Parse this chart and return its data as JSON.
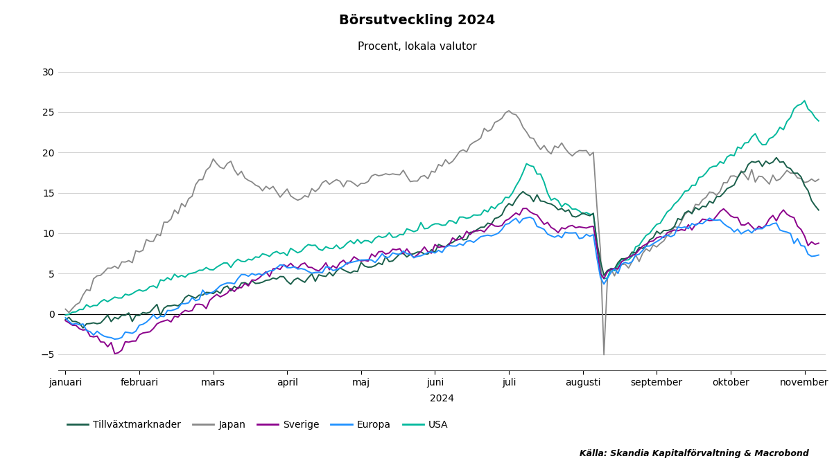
{
  "title": "Börsutveckling 2024",
  "subtitle": "Procent, lokala valutor",
  "xlabel": "2024",
  "source": "Källa: Skandia Kapitalförvaltning & Macrobond",
  "ylim": [
    -7,
    32
  ],
  "yticks": [
    -5,
    0,
    5,
    10,
    15,
    20,
    25,
    30
  ],
  "month_labels": [
    "januari",
    "februari",
    "mars",
    "april",
    "maj",
    "juni",
    "juli",
    "augusti",
    "september",
    "oktober",
    "november"
  ],
  "colors": {
    "Tillvaxtmarknader": "#1a5e4a",
    "Japan": "#888888",
    "Sverige": "#8b008b",
    "Europa": "#1e90ff",
    "USA": "#00b89c"
  },
  "legend_labels": [
    "Tillväxtmarknader",
    "Japan",
    "Sverige",
    "Europa",
    "USA"
  ]
}
